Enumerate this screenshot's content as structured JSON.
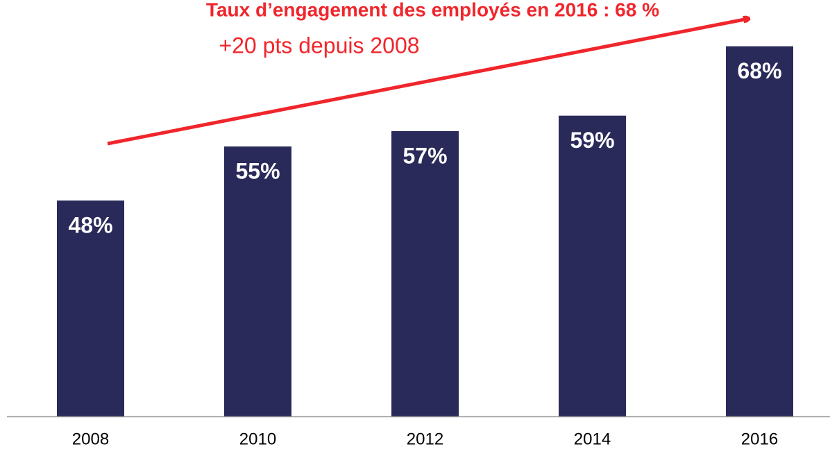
{
  "chart_data": {
    "type": "bar",
    "title": "Taux d’engagement des employés en 2016 : 68 %",
    "subtitle": "+20 pts depuis 2008",
    "categories": [
      "2008",
      "2010",
      "2012",
      "2014",
      "2016"
    ],
    "values": [
      48,
      55,
      57,
      59,
      68
    ],
    "value_labels": [
      "48%",
      "55%",
      "57%",
      "59%",
      "68%"
    ],
    "color": "#2a2a5a",
    "ylim": [
      20,
      74
    ]
  }
}
